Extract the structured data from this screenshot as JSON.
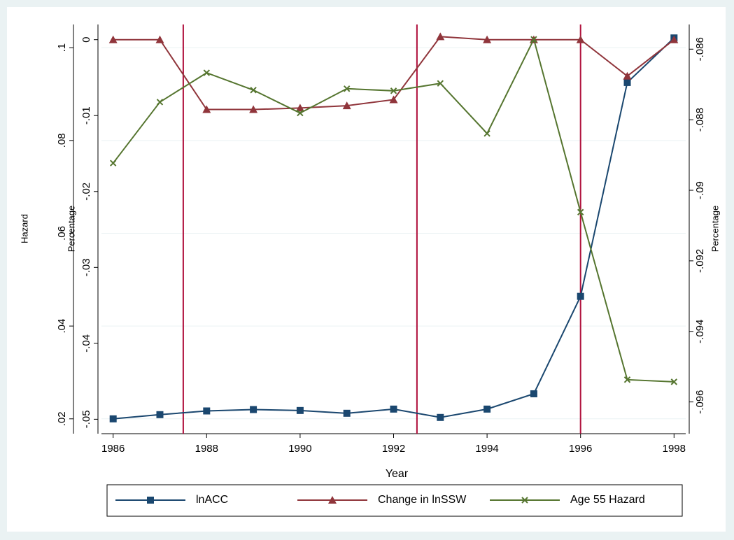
{
  "chart_data": {
    "type": "line",
    "xlabel": "Year",
    "x": [
      1986,
      1987,
      1988,
      1989,
      1990,
      1991,
      1992,
      1993,
      1994,
      1995,
      1996,
      1997,
      1998
    ],
    "xlim": [
      1985.75,
      1998.25
    ],
    "xticks": [
      1986,
      1988,
      1990,
      1992,
      1994,
      1996,
      1998
    ],
    "ylabel": "Hazard",
    "ylim": [
      0.0168,
      0.105
    ],
    "yticks": [
      {
        "value": 0.02,
        "label": ".02"
      },
      {
        "value": 0.04,
        "label": ".04"
      },
      {
        "value": 0.06,
        "label": ".06"
      },
      {
        "value": 0.08,
        "label": ".08"
      },
      {
        "value": 0.1,
        "label": ".1"
      }
    ],
    "y2label": "Percentage",
    "y2lim": [
      -0.0519,
      0.002
    ],
    "y2ticks": [
      {
        "value": -0.05,
        "label": "-.05"
      },
      {
        "value": -0.04,
        "label": "-.04"
      },
      {
        "value": -0.03,
        "label": "-.03"
      },
      {
        "value": -0.02,
        "label": "-.02"
      },
      {
        "value": -0.01,
        "label": "-.01"
      },
      0
    ],
    "y3label": "Percentage",
    "y3lim": [
      -0.0969,
      -0.0853
    ],
    "y3ticks": [
      {
        "value": -0.096,
        "label": "-.096"
      },
      {
        "value": -0.094,
        "label": "-.094"
      },
      {
        "value": -0.092,
        "label": "-.092"
      },
      {
        "value": -0.09,
        "label": "-.09"
      },
      {
        "value": -0.088,
        "label": "-.088"
      },
      {
        "value": -0.086,
        "label": "-.086"
      }
    ],
    "xlines": [
      1987.5,
      1992.5,
      1996
    ],
    "xline_color": "#b0103c",
    "grid": true,
    "legend": "bottom",
    "series": [
      {
        "name": "lnACC",
        "color": "#1a476f",
        "marker": "square",
        "axis": "y",
        "values": [
          0.02,
          0.0209,
          0.0217,
          0.022,
          0.0218,
          0.0212,
          0.0221,
          0.0203,
          0.0221,
          0.0254,
          0.0464,
          0.0925,
          0.1021
        ]
      },
      {
        "name": "Change in lnSSW",
        "color": "#90353b",
        "marker": "triangle",
        "axis": "y2",
        "values": [
          0,
          0,
          -0.0092,
          -0.0092,
          -0.009,
          -0.0087,
          -0.0079,
          0.0004,
          0,
          0,
          0,
          -0.0048,
          0
        ]
      },
      {
        "name": "Age 55 Hazard",
        "color": "#55752f",
        "marker": "x",
        "axis": "y3",
        "values": [
          -0.08923,
          -0.0875,
          -0.08667,
          -0.08716,
          -0.08781,
          -0.08712,
          -0.08718,
          -0.08697,
          -0.08839,
          -0.08572,
          -0.09062,
          -0.09537,
          -0.09543
        ]
      }
    ]
  }
}
